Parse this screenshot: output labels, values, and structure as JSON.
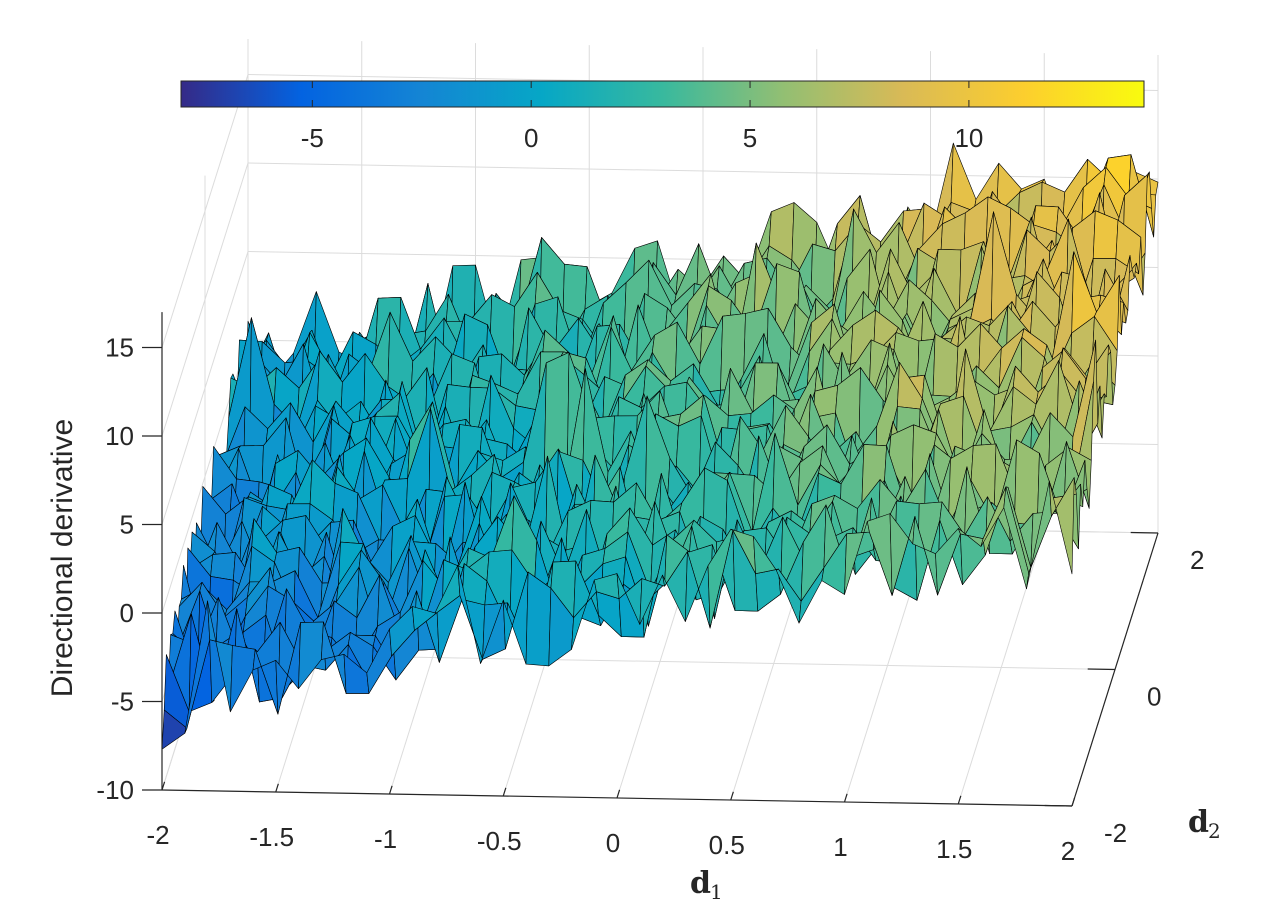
{
  "chart_data": {
    "type": "surface",
    "title": "",
    "xlabel": "d",
    "xlabel_sub": "1",
    "ylabel": "d",
    "ylabel_sub": "2",
    "zlabel": "Directional derivative",
    "xlim": [
      -2,
      2
    ],
    "ylim": [
      -2,
      2
    ],
    "zlim": [
      -10,
      17
    ],
    "x_ticks": [
      -2,
      -1.5,
      -1,
      -0.5,
      0,
      0.5,
      1,
      1.5,
      2
    ],
    "y_ticks": [
      -2,
      0,
      2
    ],
    "z_ticks": [
      -10,
      -5,
      0,
      5,
      10,
      15
    ],
    "x_tick_labels": [
      "-2",
      "-1.5",
      "-1",
      "-0.5",
      "0",
      "0.5",
      "1",
      "1.5",
      "2"
    ],
    "y_tick_labels": [
      "-2",
      "0",
      "2"
    ],
    "z_tick_labels": [
      "-10",
      "-5",
      "0",
      "5",
      "10",
      "15"
    ],
    "grid": true,
    "colormap": "parula",
    "colorbar": {
      "placement": "top",
      "range": [
        -8,
        14
      ],
      "ticks": [
        -5,
        0,
        5,
        10
      ],
      "tick_labels": [
        "-5",
        "0",
        "5",
        "10"
      ]
    },
    "surface_trend": {
      "description_free": true,
      "base": 2.5,
      "slope_d1": 2.6,
      "slope_d2": 1.0,
      "noise_amplitude": 3.0
    },
    "grid_resolution": 41,
    "colors": {
      "parula": [
        "#352a87",
        "#0363e1",
        "#1485d4",
        "#06a7c6",
        "#38b99e",
        "#92bf73",
        "#d9ba56",
        "#fcce2e",
        "#f9fb0e"
      ],
      "edge": "#000000",
      "axis": "#262626",
      "gridline": "#dcdcdc"
    }
  }
}
